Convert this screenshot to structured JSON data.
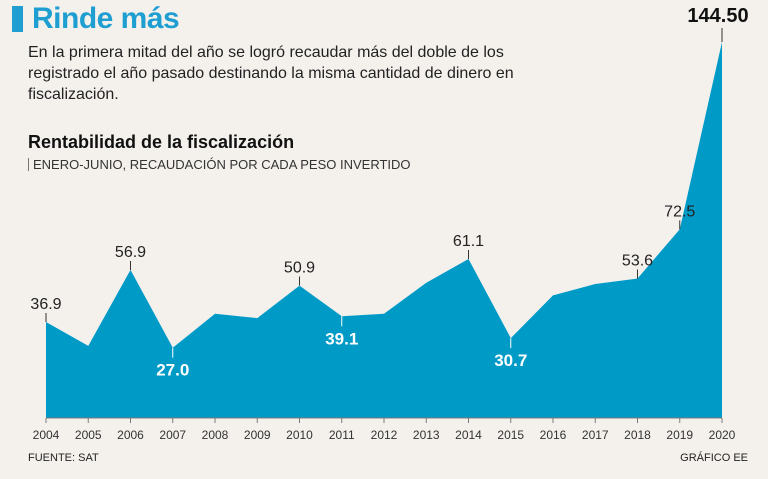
{
  "headline": "Rinde más",
  "intro": "En la primera mitad del año se logró recaudar más del doble de los registrado el año pasado destinando la misma cantidad de dinero en fiscalización.",
  "chart_title": "Rentabilidad de la fiscalización",
  "chart_subtitle": "ENERO-JUNIO, RECAUDACIÓN POR CADA PESO INVERTIDO",
  "footer": {
    "source": "FUENTE: SAT",
    "credit": "GRÁFICO EE"
  },
  "colors": {
    "area": "#009ac6",
    "headline": "#1f9fd1",
    "background": "#f4f1ed"
  },
  "chart_data": {
    "type": "area",
    "title": "Rentabilidad de la fiscalización",
    "subtitle": "ENERO-JUNIO, RECAUDACIÓN POR CADA PESO INVERTIDO",
    "x": [
      "2004",
      "2005",
      "2006",
      "2007",
      "2008",
      "2009",
      "2010",
      "2011",
      "2012",
      "2013",
      "2014",
      "2015",
      "2016",
      "2017",
      "2018",
      "2019",
      "2020"
    ],
    "values": [
      36.9,
      27.7,
      56.9,
      27.0,
      40.1,
      38.4,
      50.9,
      39.1,
      40.1,
      52.0,
      61.1,
      30.7,
      47.1,
      51.5,
      53.6,
      72.5,
      144.5
    ],
    "labels": [
      {
        "index": 0,
        "text": "36.9",
        "style": "outside"
      },
      {
        "index": 2,
        "text": "56.9",
        "style": "outside"
      },
      {
        "index": 3,
        "text": "27.0",
        "style": "inside"
      },
      {
        "index": 6,
        "text": "50.9",
        "style": "outside"
      },
      {
        "index": 7,
        "text": "39.1",
        "style": "inside"
      },
      {
        "index": 10,
        "text": "61.1",
        "style": "outside"
      },
      {
        "index": 11,
        "text": "30.7",
        "style": "inside"
      },
      {
        "index": 14,
        "text": "53.6",
        "style": "outside"
      },
      {
        "index": 15,
        "text": "72.5",
        "style": "outside"
      },
      {
        "index": 16,
        "text": "144.50",
        "style": "highlight"
      }
    ],
    "ylim": [
      0,
      144.5
    ],
    "xlabel": "",
    "ylabel": "",
    "grid": false
  }
}
